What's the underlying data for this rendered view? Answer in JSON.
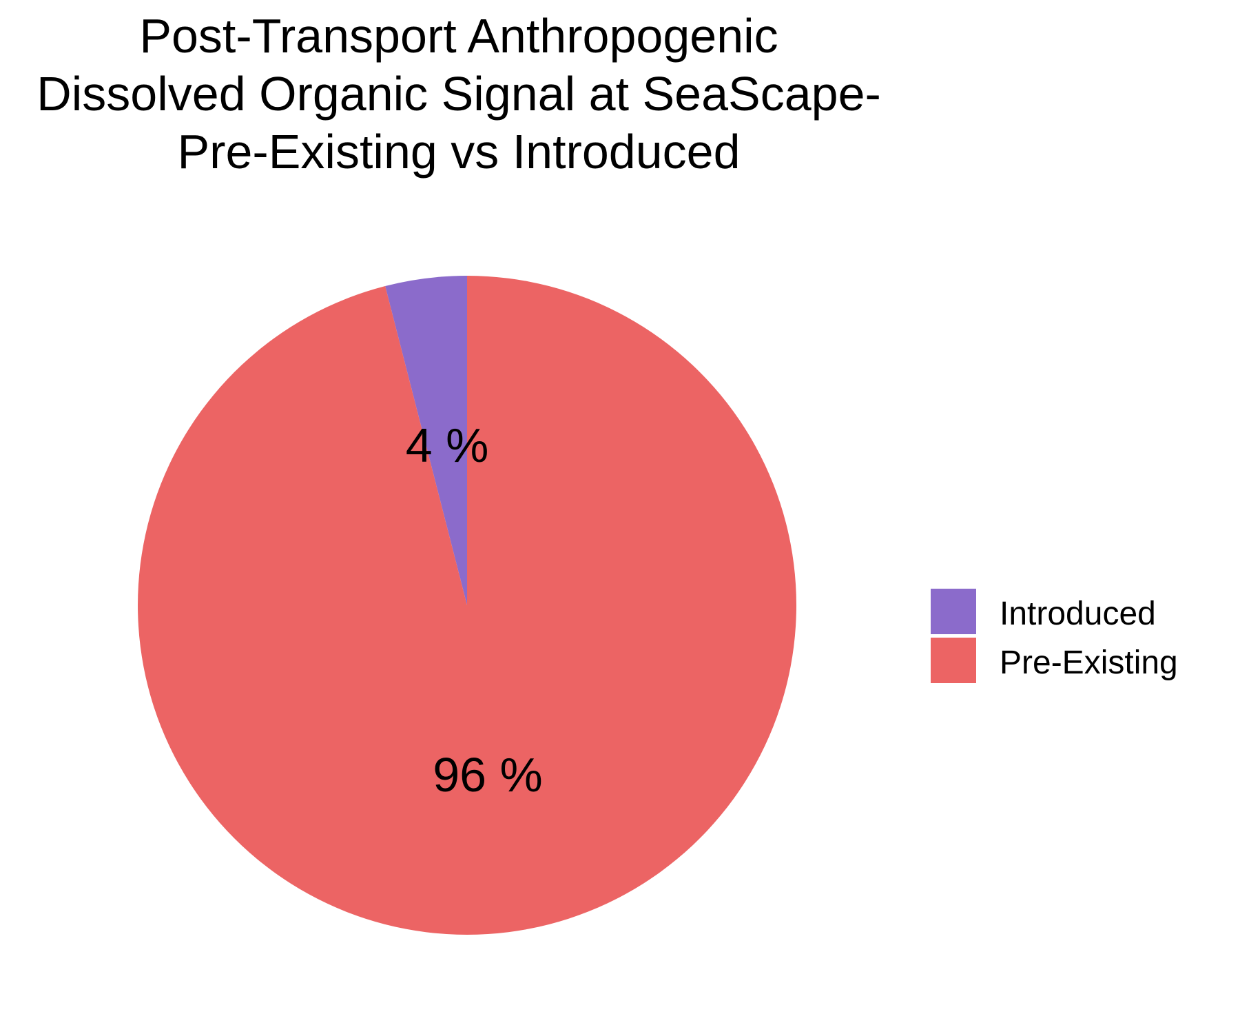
{
  "chart_data": {
    "type": "pie",
    "title": [
      "Post-Transport Anthropogenic",
      "Dissolved Organic Signal at SeaScape-",
      "Pre-Existing vs Introduced"
    ],
    "slices": [
      {
        "name": "Introduced",
        "value": 4,
        "label": "4 %",
        "color": "#8B6BCB"
      },
      {
        "name": "Pre-Existing",
        "value": 96,
        "label": "96 %",
        "color": "#EC6464"
      }
    ],
    "legend": {
      "placement": "right",
      "entries": [
        "Introduced",
        "Pre-Existing"
      ]
    }
  }
}
